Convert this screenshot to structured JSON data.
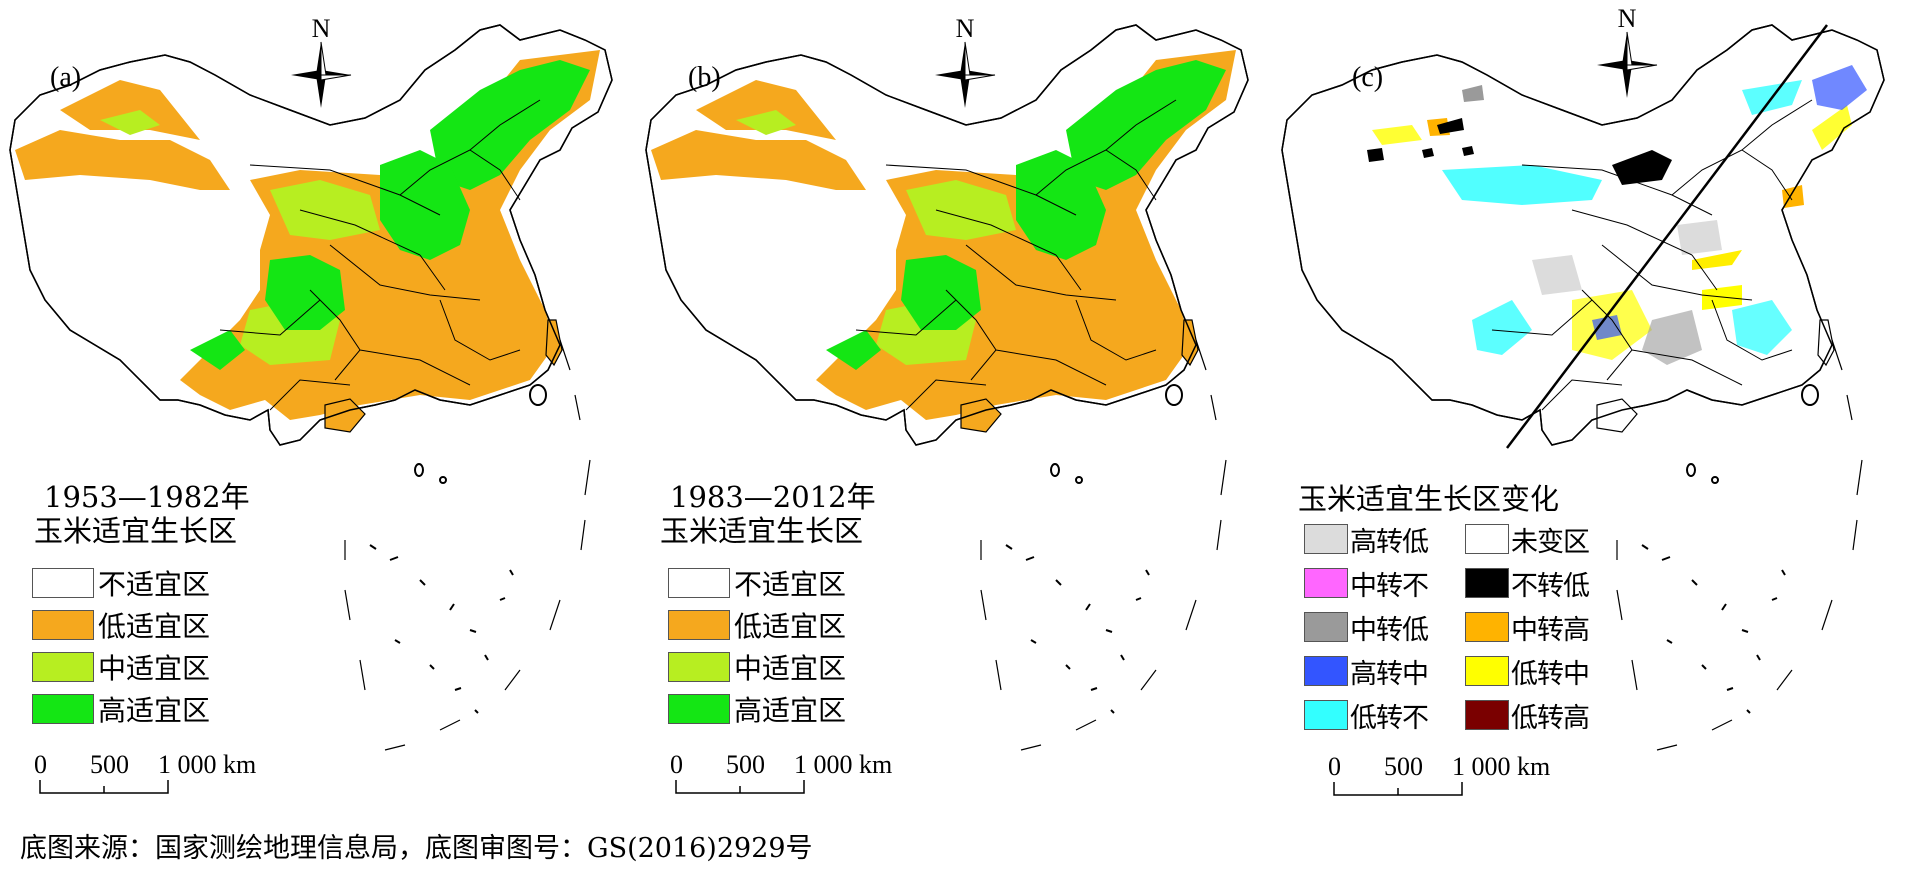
{
  "north_label": "N",
  "panels": [
    {
      "label": "(a)",
      "period": "1953—1982年",
      "subtitle": "玉米适宜生长区",
      "legend": [
        {
          "label": "不适宜区",
          "color": "#ffffff"
        },
        {
          "label": "低适宜区",
          "color": "#f5a81e"
        },
        {
          "label": "中适宜区",
          "color": "#b7ee21"
        },
        {
          "label": "高适宜区",
          "color": "#14e614"
        }
      ]
    },
    {
      "label": "(b)",
      "period": "1983—2012年",
      "subtitle": "玉米适宜生长区",
      "legend": [
        {
          "label": "不适宜区",
          "color": "#ffffff"
        },
        {
          "label": "低适宜区",
          "color": "#f5a81e"
        },
        {
          "label": "中适宜区",
          "color": "#b7ee21"
        },
        {
          "label": "高适宜区",
          "color": "#14e614"
        }
      ]
    },
    {
      "label": "(c)",
      "subtitle": "玉米适宜生长区变化",
      "legend": [
        {
          "label": "高转低",
          "color": "#dcdcdc"
        },
        {
          "label": "未变区",
          "color": "#ffffff"
        },
        {
          "label": "中转不",
          "color": "#ff66ff"
        },
        {
          "label": "不转低",
          "color": "#000000"
        },
        {
          "label": "中转低",
          "color": "#9a9a9a"
        },
        {
          "label": "中转高",
          "color": "#ffb300"
        },
        {
          "label": "高转中",
          "color": "#3355ff"
        },
        {
          "label": "低转中",
          "color": "#ffff00"
        },
        {
          "label": "低转不",
          "color": "#33ffff"
        },
        {
          "label": "低转高",
          "color": "#7a0000"
        }
      ]
    }
  ],
  "scale": {
    "tick0": "0",
    "tick1": "500",
    "tick2": "1 000 km"
  },
  "source": "底图来源：国家测绘地理信息局，底图审图号：GS(2016)2929号"
}
